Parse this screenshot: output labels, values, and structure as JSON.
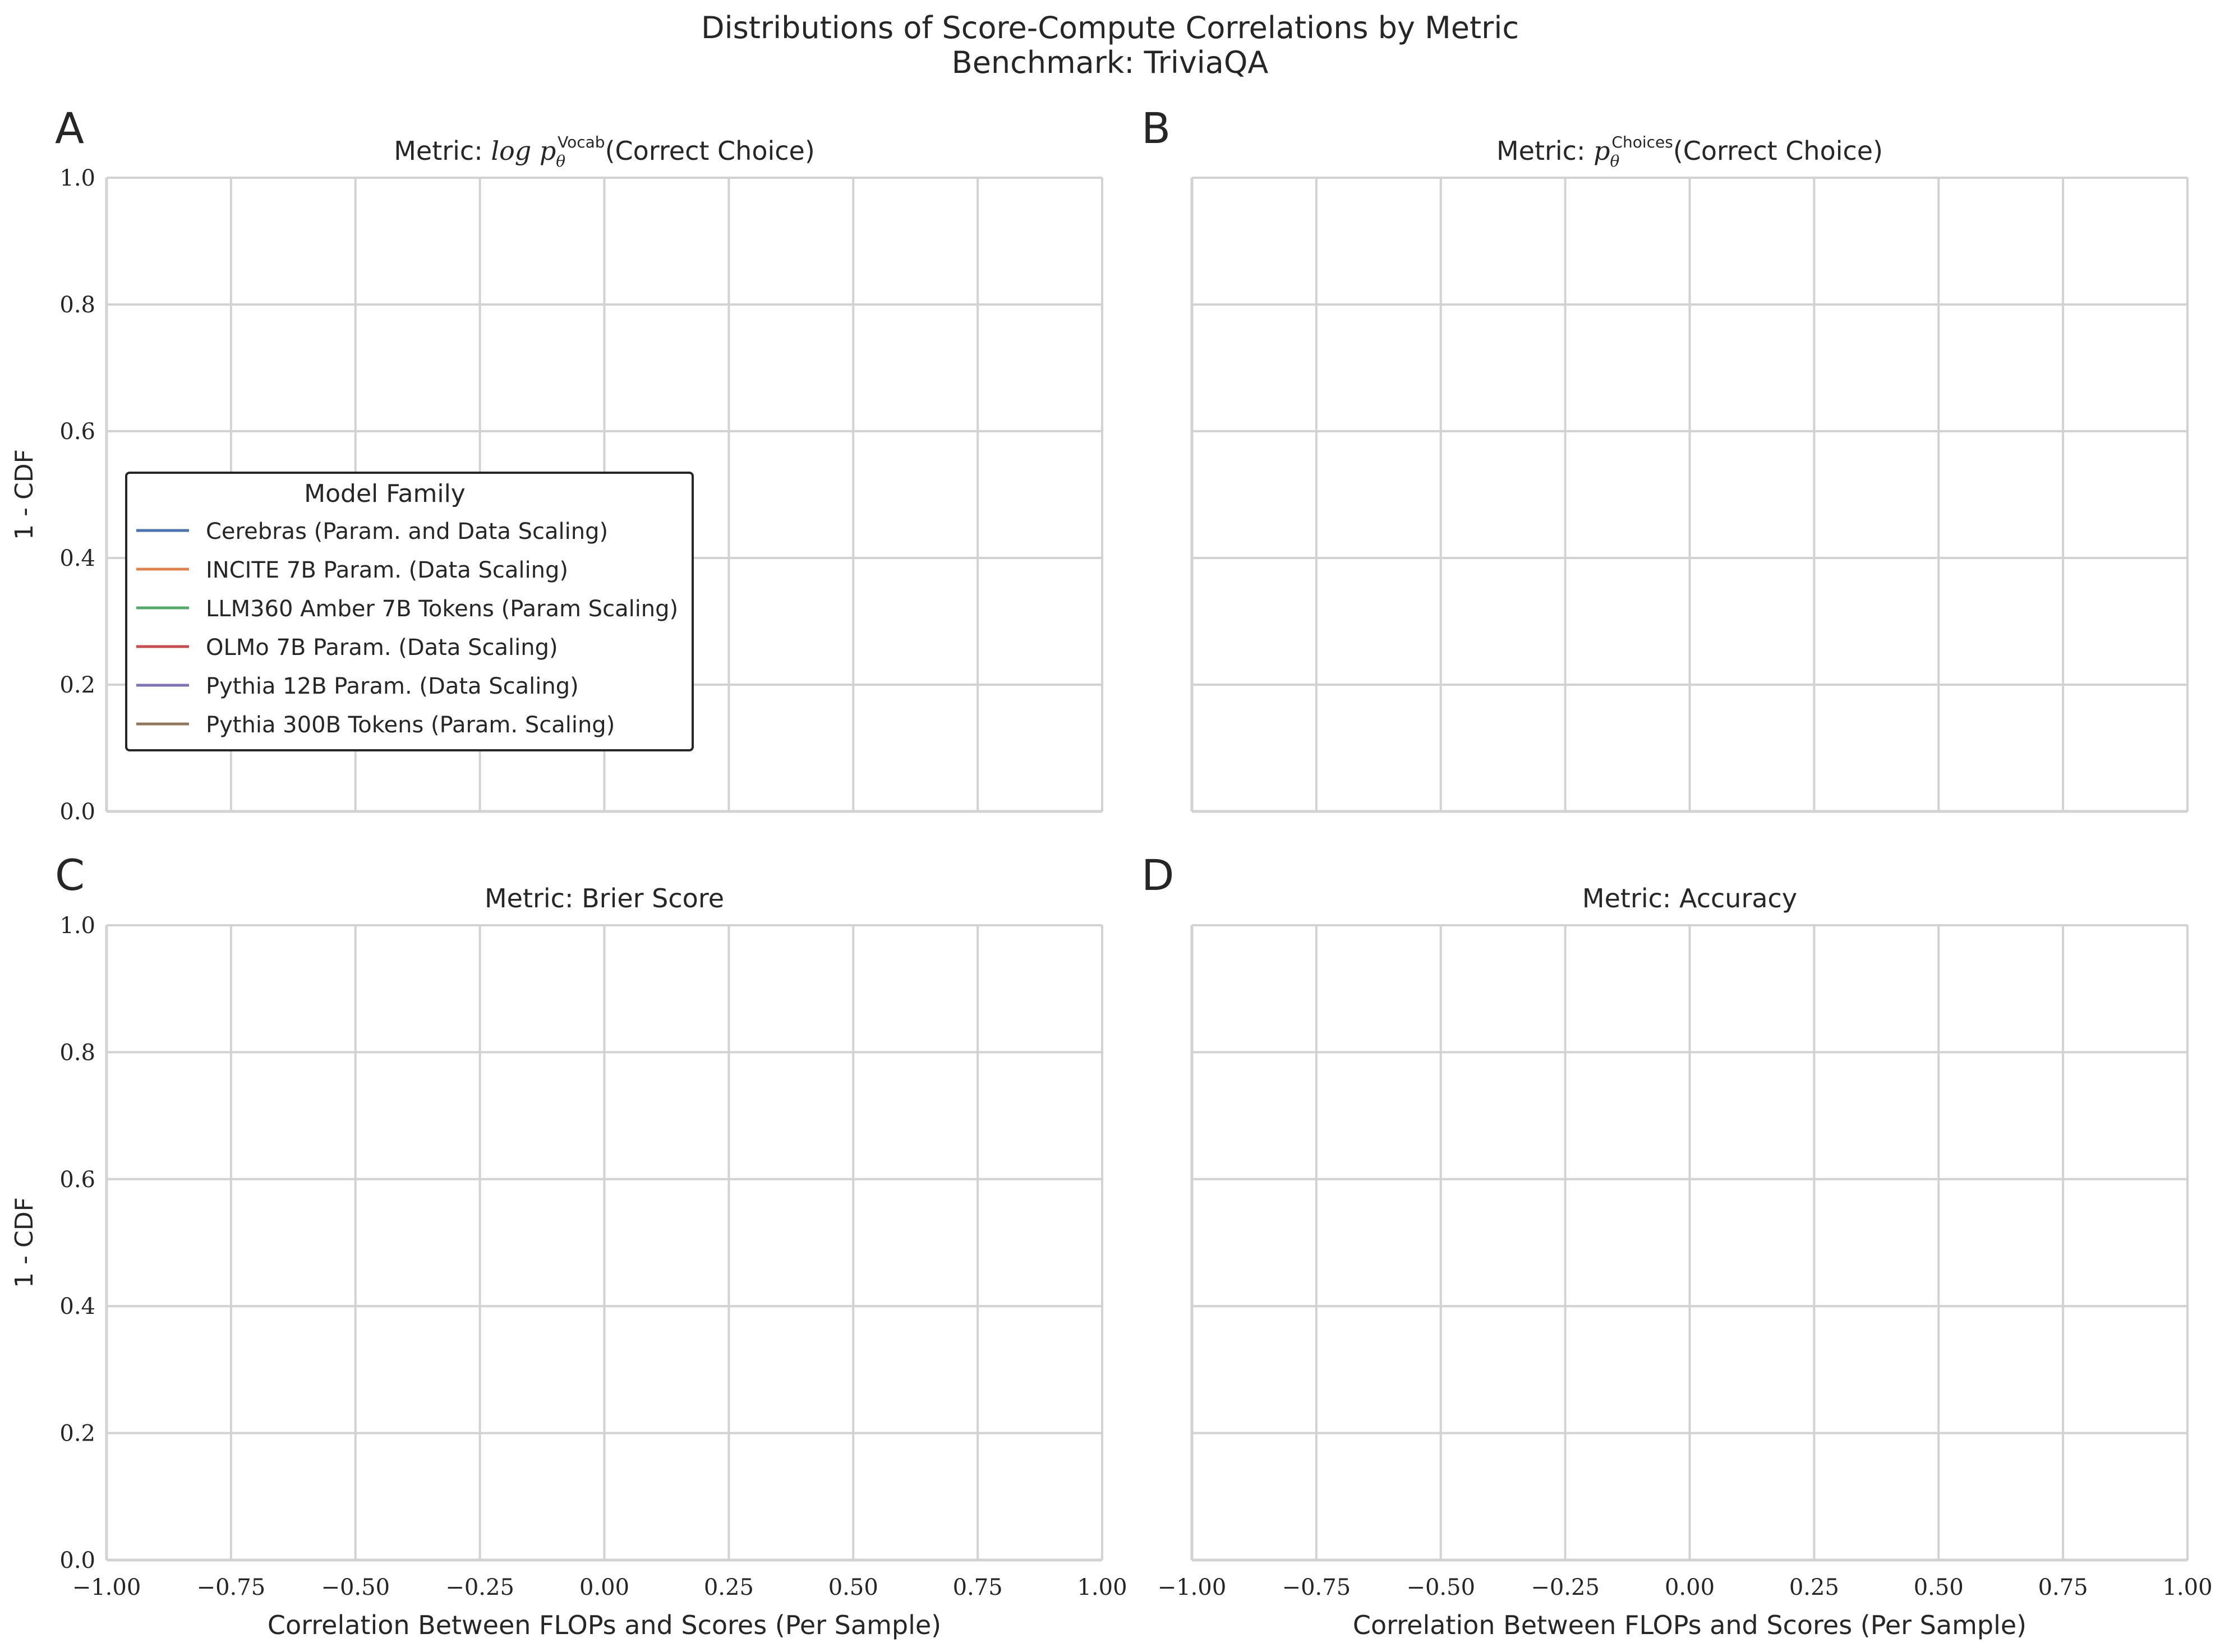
{
  "figure": {
    "title_line1": "Distributions of Score-Compute Correlations by Metric",
    "title_line2": "Benchmark: TriviaQA"
  },
  "chart_data": [
    {
      "type": "line",
      "panel_letter": "A",
      "title_prefix": "Metric: ",
      "title_math": "log p",
      "title_math_sup": "Vocab",
      "title_math_sub": "θ",
      "title_suffix": "(Correct Choice)",
      "xlabel": "",
      "ylabel": "1 - CDF",
      "xlim": [
        -1.0,
        1.0
      ],
      "ylim": [
        0.0,
        1.0
      ],
      "xticks": [
        -1.0,
        -0.75,
        -0.5,
        -0.25,
        0.0,
        0.25,
        0.5,
        0.75,
        1.0
      ],
      "yticks": [
        0.0,
        0.2,
        0.4,
        0.6,
        0.8,
        1.0
      ],
      "show_xtick_labels": false,
      "show_ytick_labels": true,
      "grid": true,
      "series": []
    },
    {
      "type": "line",
      "panel_letter": "B",
      "title_prefix": "Metric: ",
      "title_math": "p",
      "title_math_sup": "Choices",
      "title_math_sub": "θ",
      "title_suffix": "(Correct Choice)",
      "xlabel": "",
      "ylabel": "",
      "xlim": [
        -1.0,
        1.0
      ],
      "ylim": [
        0.0,
        1.0
      ],
      "xticks": [
        -1.0,
        -0.75,
        -0.5,
        -0.25,
        0.0,
        0.25,
        0.5,
        0.75,
        1.0
      ],
      "yticks": [
        0.0,
        0.2,
        0.4,
        0.6,
        0.8,
        1.0
      ],
      "show_xtick_labels": false,
      "show_ytick_labels": false,
      "grid": true,
      "series": []
    },
    {
      "type": "line",
      "panel_letter": "C",
      "title_prefix": "Metric: Brier Score",
      "xlabel": "Correlation Between FLOPs and Scores (Per Sample)",
      "ylabel": "1 - CDF",
      "xlim": [
        -1.0,
        1.0
      ],
      "ylim": [
        0.0,
        1.0
      ],
      "xticks": [
        -1.0,
        -0.75,
        -0.5,
        -0.25,
        0.0,
        0.25,
        0.5,
        0.75,
        1.0
      ],
      "yticks": [
        0.0,
        0.2,
        0.4,
        0.6,
        0.8,
        1.0
      ],
      "show_xtick_labels": true,
      "show_ytick_labels": true,
      "grid": true,
      "series": []
    },
    {
      "type": "line",
      "panel_letter": "D",
      "title_prefix": "Metric: Accuracy",
      "xlabel": "Correlation Between FLOPs and Scores (Per Sample)",
      "ylabel": "",
      "xlim": [
        -1.0,
        1.0
      ],
      "ylim": [
        0.0,
        1.0
      ],
      "xticks": [
        -1.0,
        -0.75,
        -0.5,
        -0.25,
        0.0,
        0.25,
        0.5,
        0.75,
        1.0
      ],
      "yticks": [
        0.0,
        0.2,
        0.4,
        0.6,
        0.8,
        1.0
      ],
      "show_xtick_labels": true,
      "show_ytick_labels": false,
      "grid": true,
      "series": []
    }
  ],
  "legend": {
    "title": "Model Family",
    "placement": "center-left of panel A",
    "entries": [
      {
        "label": "Cerebras (Param. and Data Scaling)",
        "color": "#4c72b0"
      },
      {
        "label": "INCITE 7B Param. (Data Scaling)",
        "color": "#dd8452"
      },
      {
        "label": "LLM360 Amber 7B Tokens (Param Scaling)",
        "color": "#55a868"
      },
      {
        "label": "OLMo 7B Param. (Data Scaling)",
        "color": "#c44e52"
      },
      {
        "label": "Pythia 12B Param. (Data Scaling)",
        "color": "#8172b3"
      },
      {
        "label": "Pythia 300B Tokens (Param. Scaling)",
        "color": "#937860"
      }
    ]
  },
  "colors": {
    "grid": "#d2d2d2",
    "axis_spine": "#d2d2d2",
    "text": "#262626",
    "legend_border": "#262626"
  }
}
